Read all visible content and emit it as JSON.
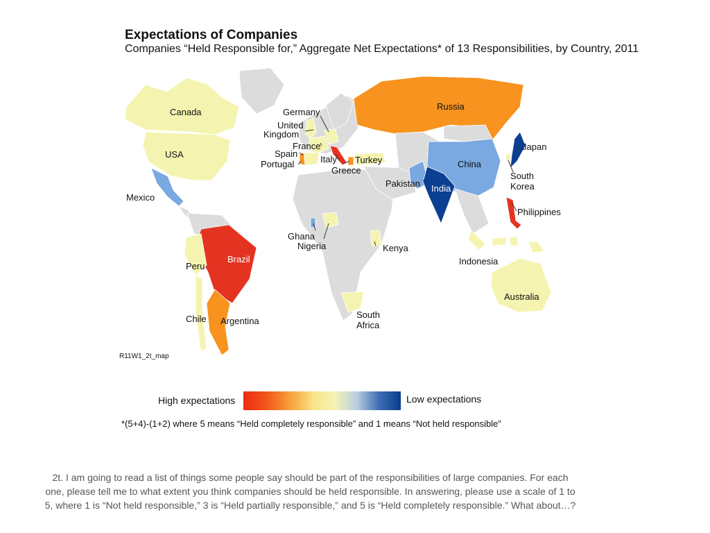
{
  "title": "Expectations of Companies",
  "subtitle": "Companies “Held Responsible for,” Aggregate Net Expectations* of 13 Responsibilities, by Country, 2011",
  "map_code": "R11W1_2t_map",
  "legend": {
    "high_label": "High expectations",
    "low_label": "Low expectations",
    "gradient": [
      "#ee2a14",
      "#f6a23a",
      "#f4f4b2",
      "#083c8e"
    ]
  },
  "footnote": "*(5+4)-(1+2) where 5 means “Held completely responsible” and 1 means “Not held responsible”",
  "question": "2t. I am going to read a list of things some people say should be part of the responsibilities of large companies. For each one, please tell me to what extent you think companies should be held responsible. In answering, please use a scale of 1 to 5, where 1 is “Not held responsible,” 3 is “Held partially responsible,” and 5 is “Held completely responsible.” What about…?",
  "colors": {
    "no_data": "#dcdcdc",
    "pale_yellow": "#f4f4b0",
    "orange": "#f7931e",
    "red": "#e53322",
    "light_blue": "#7aa8e0",
    "dark_blue": "#0b3f91"
  },
  "countries": {
    "canada": "Canada",
    "usa": "USA",
    "mexico": "Mexico",
    "brazil": "Brazil",
    "peru": "Peru",
    "chile": "Chile",
    "argentina": "Argentina",
    "germany": "Germany",
    "uk_1": "United",
    "uk_2": "Kingdom",
    "france": "France",
    "spain": "Spain",
    "portugal": "Portugal",
    "italy": "Italy",
    "greece": "Greece",
    "turkey": "Turkey",
    "russia": "Russia",
    "china": "China",
    "india": "India",
    "pakistan": "Pakistan",
    "japan": "Japan",
    "south_korea_1": "South",
    "south_korea_2": "Korea",
    "philippines": "Philippines",
    "indonesia": "Indonesia",
    "australia": "Australia",
    "ghana": "Ghana",
    "nigeria": "Nigeria",
    "kenya": "Kenya",
    "south_africa_1": "South",
    "south_africa_2": "Africa"
  }
}
